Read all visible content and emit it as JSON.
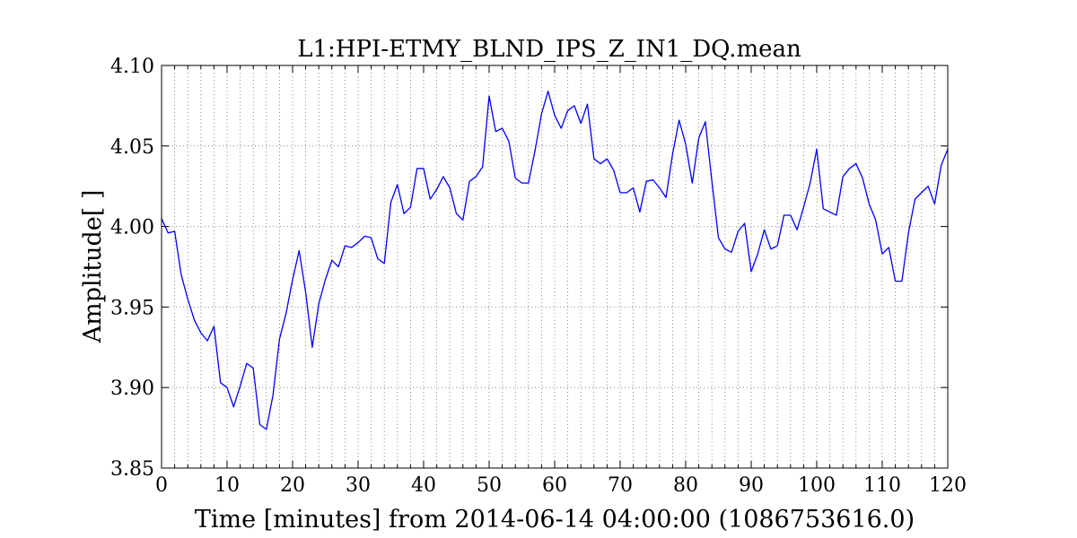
{
  "chart_data": {
    "type": "line",
    "title": "L1:HPI-ETMY_BLND_IPS_Z_IN1_DQ.mean",
    "xlabel": "Time [minutes] from 2014-06-14 04:00:00 (1086753616.0)",
    "ylabel": "Amplitude[ ]",
    "xlim": [
      0,
      120
    ],
    "ylim": [
      3.85,
      4.1
    ],
    "x_major_ticks": [
      0,
      10,
      20,
      30,
      40,
      50,
      60,
      70,
      80,
      90,
      100,
      110,
      120
    ],
    "x_major_tick_labels": [
      "0",
      "10",
      "20",
      "30",
      "40",
      "50",
      "60",
      "70",
      "80",
      "90",
      "100",
      "110",
      "120"
    ],
    "y_major_ticks": [
      3.85,
      3.9,
      3.95,
      4.0,
      4.05,
      4.1
    ],
    "y_major_tick_labels": [
      "3.85",
      "3.90",
      "3.95",
      "4.00",
      "4.05",
      "4.10"
    ],
    "x_minor_step": 2,
    "grid": true,
    "grid_style": "dotted",
    "line_color": "#0000ff",
    "series": [
      {
        "x": [
          0,
          1,
          2,
          3,
          4,
          5,
          6,
          7,
          8,
          9,
          10,
          11,
          12,
          13,
          14,
          15,
          16,
          17,
          18,
          19,
          20,
          21,
          22,
          23,
          24,
          25,
          26,
          27,
          28,
          29,
          30,
          31,
          32,
          33,
          34,
          35,
          36,
          37,
          38,
          39,
          40,
          41,
          42,
          43,
          44,
          45,
          46,
          47,
          48,
          49,
          50,
          51,
          52,
          53,
          54,
          55,
          56,
          57,
          58,
          59,
          60,
          61,
          62,
          63,
          64,
          65,
          66,
          67,
          68,
          69,
          70,
          71,
          72,
          73,
          74,
          75,
          76,
          77,
          78,
          79,
          80,
          81,
          82,
          83,
          84,
          85,
          86,
          87,
          88,
          89,
          90,
          91,
          92,
          93,
          94,
          95,
          96,
          97,
          98,
          99,
          100,
          101,
          102,
          103,
          104,
          105,
          106,
          107,
          108,
          109,
          110,
          111,
          112,
          113,
          114,
          115,
          116,
          117,
          118,
          119,
          120
        ],
        "y": [
          4.005,
          3.996,
          3.997,
          3.97,
          3.955,
          3.942,
          3.934,
          3.929,
          3.938,
          3.903,
          3.9,
          3.888,
          3.901,
          3.915,
          3.912,
          3.877,
          3.874,
          3.895,
          3.93,
          3.946,
          3.967,
          3.985,
          3.959,
          3.925,
          3.952,
          3.967,
          3.979,
          3.975,
          3.988,
          3.987,
          3.99,
          3.994,
          3.993,
          3.98,
          3.977,
          4.015,
          4.026,
          4.008,
          4.012,
          4.036,
          4.036,
          4.017,
          4.023,
          4.031,
          4.024,
          4.008,
          4.004,
          4.028,
          4.031,
          4.037,
          4.081,
          4.059,
          4.061,
          4.053,
          4.03,
          4.027,
          4.027,
          4.047,
          4.07,
          4.084,
          4.069,
          4.061,
          4.072,
          4.075,
          4.064,
          4.076,
          4.042,
          4.039,
          4.042,
          4.035,
          4.021,
          4.021,
          4.024,
          4.009,
          4.028,
          4.029,
          4.024,
          4.018,
          4.045,
          4.066,
          4.051,
          4.027,
          4.055,
          4.065,
          4.028,
          3.993,
          3.986,
          3.984,
          3.997,
          4.002,
          3.972,
          3.983,
          3.998,
          3.986,
          3.988,
          4.007,
          4.007,
          3.998,
          4.012,
          4.027,
          4.048,
          4.011,
          4.009,
          4.007,
          4.031,
          4.036,
          4.039,
          4.03,
          4.014,
          4.004,
          3.983,
          3.987,
          3.966,
          3.966,
          3.996,
          4.017,
          4.021,
          4.025,
          4.014,
          4.038,
          4.048
        ]
      }
    ]
  }
}
